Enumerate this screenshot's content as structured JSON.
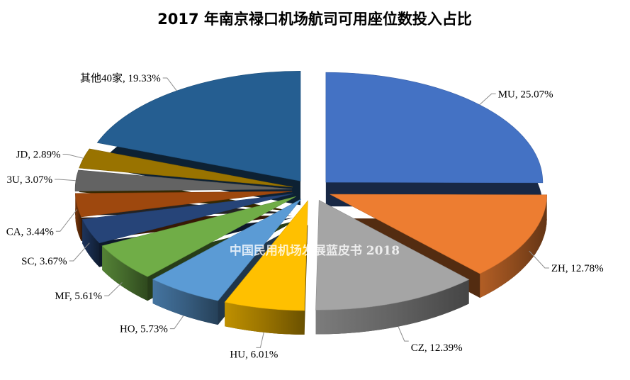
{
  "chart_data": {
    "type": "pie",
    "title": "2017 年南京禄口机场航司可用座位数投入占比",
    "watermark": "中国民用机场发展蓝皮书 2018",
    "slices": [
      {
        "name": "MU",
        "value": 25.07,
        "label": "MU, 25.07%",
        "color": "#4472c4"
      },
      {
        "name": "ZH",
        "value": 12.78,
        "label": "ZH, 12.78%",
        "color": "#ed7d31"
      },
      {
        "name": "CZ",
        "value": 12.39,
        "label": "CZ, 12.39%",
        "color": "#a5a5a5"
      },
      {
        "name": "HU",
        "value": 6.01,
        "label": "HU, 6.01%",
        "color": "#ffc000"
      },
      {
        "name": "HO",
        "value": 5.73,
        "label": "HO, 5.73%",
        "color": "#5b9bd5"
      },
      {
        "name": "MF",
        "value": 5.61,
        "label": "MF, 5.61%",
        "color": "#70ad47"
      },
      {
        "name": "SC",
        "value": 3.67,
        "label": "SC, 3.67%",
        "color": "#264478"
      },
      {
        "name": "CA",
        "value": 3.44,
        "label": "CA, 3.44%",
        "color": "#9e480e"
      },
      {
        "name": "3U",
        "value": 3.07,
        "label": "3U, 3.07%",
        "color": "#636363"
      },
      {
        "name": "JD",
        "value": 2.89,
        "label": "JD, 2.89%",
        "color": "#997300"
      },
      {
        "name": "其他40家",
        "value": 19.33,
        "label": "其他40家, 19.33%",
        "color": "#255e91"
      }
    ]
  }
}
